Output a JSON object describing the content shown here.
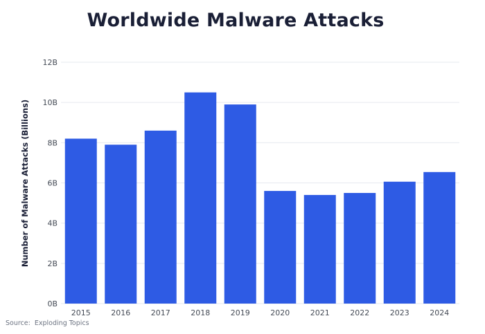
{
  "chart_data": {
    "type": "bar",
    "title": "Worldwide Malware Attacks",
    "xlabel": "",
    "ylabel": "Number of Malware Attacks (Billions)",
    "categories": [
      "2015",
      "2016",
      "2017",
      "2018",
      "2019",
      "2020",
      "2021",
      "2022",
      "2023",
      "2024"
    ],
    "values": [
      8.2,
      7.9,
      8.6,
      10.5,
      9.9,
      5.6,
      5.4,
      5.5,
      6.06,
      6.54
    ],
    "ylim": [
      0,
      12
    ],
    "yticks": [
      0,
      2,
      4,
      6,
      8,
      10,
      12
    ],
    "ytick_labels": [
      "0B",
      "2B",
      "4B",
      "6B",
      "8B",
      "10B",
      "12B"
    ],
    "grid": true,
    "bar_color": "#2e5be4",
    "grid_color": "#e6e9ef"
  },
  "source": {
    "label": "Source:",
    "value": "Exploding Topics"
  }
}
